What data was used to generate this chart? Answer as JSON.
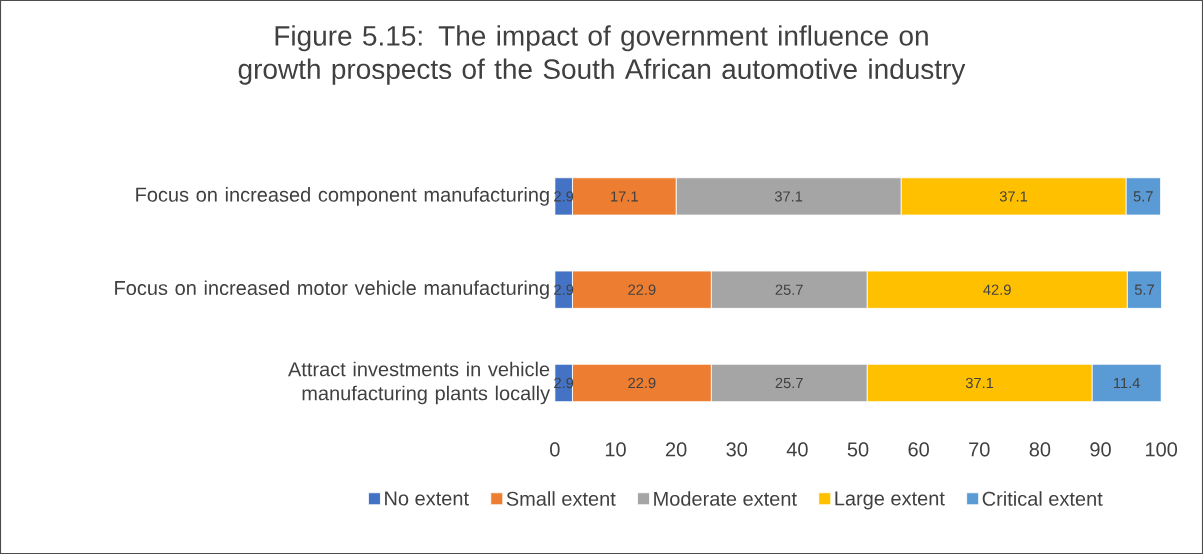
{
  "chart_data": {
    "type": "bar",
    "orientation": "horizontal",
    "stacked": true,
    "title": "Figure 5.15: The impact of government influence on growth prospects of the South African automotive industry",
    "categories": [
      "Focus on increased component manufacturing",
      "Focus on increased motor vehicle manufacturing",
      "Attract investments in vehicle manufacturing plants locally"
    ],
    "series": [
      {
        "name": "No extent",
        "color": "#4472c4",
        "values": [
          2.9,
          2.9,
          2.9
        ]
      },
      {
        "name": "Small extent",
        "color": "#ed7d31",
        "values": [
          17.1,
          22.9,
          22.9
        ]
      },
      {
        "name": "Moderate extent",
        "color": "#a5a5a5",
        "values": [
          37.1,
          25.7,
          25.7
        ]
      },
      {
        "name": "Large extent",
        "color": "#ffc000",
        "values": [
          37.1,
          42.9,
          37.1
        ]
      },
      {
        "name": "Critical extent",
        "color": "#5b9bd5",
        "values": [
          5.7,
          5.7,
          11.4
        ]
      }
    ],
    "xlim": [
      0,
      100
    ],
    "xticks": [
      0,
      10,
      20,
      30,
      40,
      50,
      60,
      70,
      80,
      90,
      100
    ],
    "legend": "bottom",
    "data_labels": true
  }
}
